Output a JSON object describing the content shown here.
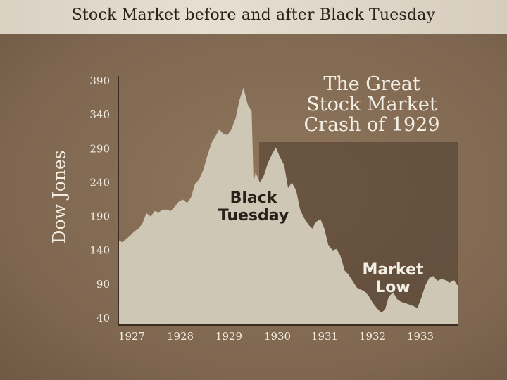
{
  "banner": {
    "title": "Stock Market before and after Black Tuesday"
  },
  "chart_data": {
    "type": "area",
    "ylabel": "Dow Jones",
    "yticks": [
      390,
      340,
      290,
      240,
      190,
      140,
      90,
      40
    ],
    "xticks": [
      "1927",
      "1928",
      "1929",
      "1930",
      "1931",
      "1932",
      "1933"
    ],
    "ylim": [
      40,
      390
    ],
    "xlim": [
      1927.0,
      1934.0
    ],
    "grid": false,
    "title_lines": [
      "The Great",
      "Stock Market",
      "Crash of 1929"
    ],
    "annotations": [
      {
        "lines": [
          "Black",
          "Tuesday"
        ]
      },
      {
        "lines": [
          "Market",
          "Low"
        ]
      }
    ],
    "colors": {
      "fill": "#cfc7b5",
      "dark_band": "#4a3a2b",
      "text_light": "#f4efe5"
    },
    "series": [
      {
        "x": [
          1927.0,
          1927.08,
          1927.17,
          1927.25,
          1927.33,
          1927.42,
          1927.5,
          1927.58,
          1927.67,
          1927.75,
          1927.83,
          1927.92,
          1928.0,
          1928.08,
          1928.17,
          1928.25,
          1928.33,
          1928.42,
          1928.5,
          1928.58,
          1928.67,
          1928.75,
          1928.83,
          1928.92,
          1929.0,
          1929.08,
          1929.17,
          1929.25,
          1929.33,
          1929.42,
          1929.5,
          1929.58,
          1929.67,
          1929.75,
          1929.79,
          1929.83,
          1929.92,
          1930.0,
          1930.08,
          1930.17,
          1930.25,
          1930.33,
          1930.42,
          1930.5,
          1930.58,
          1930.67,
          1930.75,
          1930.83,
          1930.92,
          1931.0,
          1931.08,
          1931.17,
          1931.25,
          1931.33,
          1931.42,
          1931.5,
          1931.58,
          1931.67,
          1931.75,
          1931.83,
          1931.92,
          1932.0,
          1932.08,
          1932.17,
          1932.25,
          1932.33,
          1932.42,
          1932.5,
          1932.58,
          1932.67,
          1932.75,
          1932.83,
          1932.92,
          1933.0,
          1933.08,
          1933.17,
          1933.25,
          1933.33,
          1933.42,
          1933.5,
          1933.58,
          1933.67,
          1933.75,
          1933.83,
          1933.92,
          1934.0
        ],
        "y": [
          155,
          152,
          157,
          162,
          168,
          172,
          180,
          195,
          190,
          198,
          196,
          200,
          200,
          198,
          205,
          212,
          215,
          210,
          218,
          238,
          245,
          258,
          278,
          298,
          308,
          318,
          312,
          310,
          318,
          335,
          362,
          380,
          355,
          345,
          240,
          255,
          240,
          250,
          268,
          282,
          292,
          278,
          266,
          232,
          240,
          228,
          200,
          188,
          178,
          172,
          182,
          186,
          172,
          148,
          140,
          142,
          132,
          110,
          104,
          95,
          85,
          82,
          80,
          72,
          62,
          55,
          48,
          52,
          72,
          78,
          68,
          64,
          62,
          60,
          58,
          55,
          70,
          88,
          100,
          102,
          95,
          98,
          96,
          92,
          96,
          88
        ]
      }
    ]
  }
}
